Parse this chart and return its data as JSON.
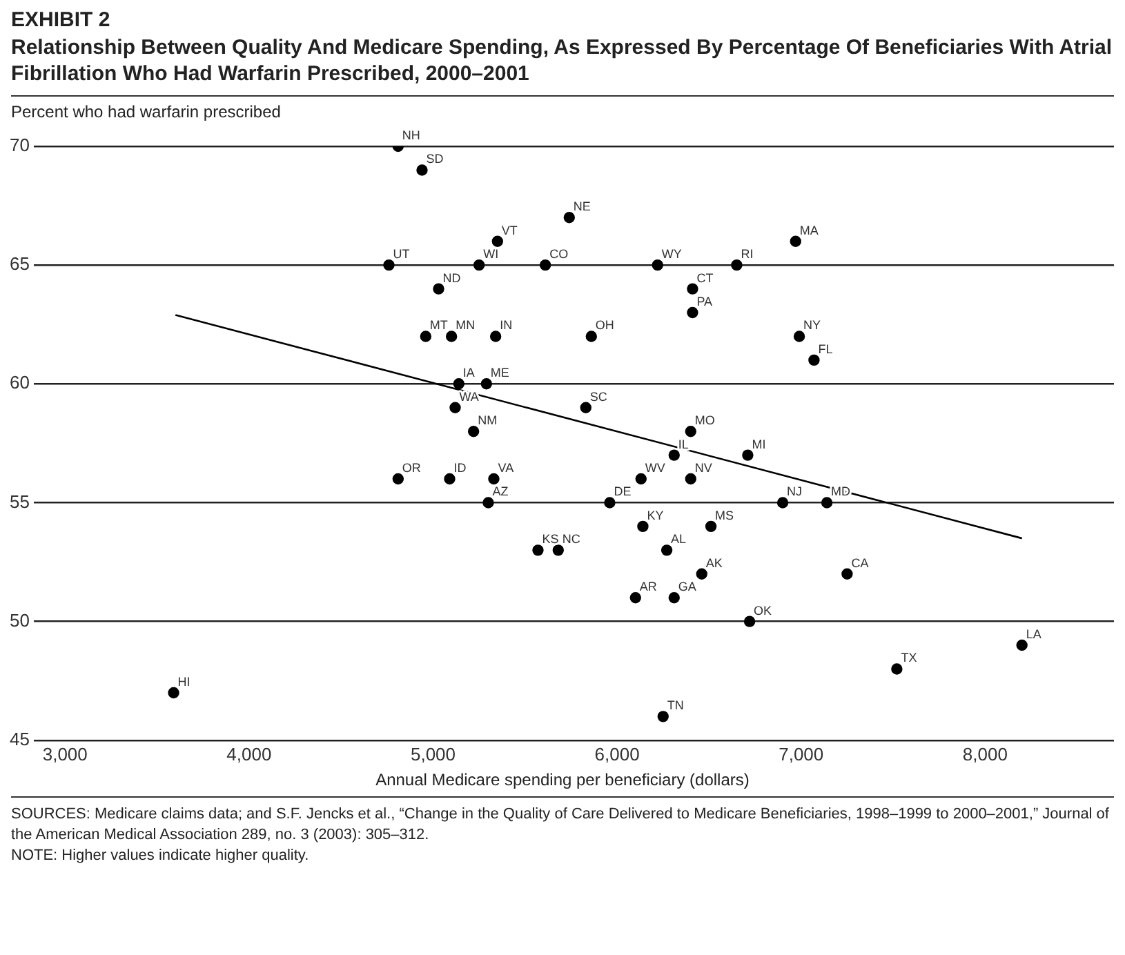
{
  "chart_data": {
    "type": "scatter",
    "title": "EXHIBIT 2",
    "subtitle": "Relationship Between Quality And Medicare Spending, As Expressed By Percentage Of Beneficiaries With Atrial Fibrillation Who Had Warfarin Prescribed, 2000–2001",
    "ylabel": "Percent who had warfarin prescribed",
    "xlabel": "Annual Medicare spending per beneficiary (dollars)",
    "xlim": [
      2830,
      8700
    ],
    "ylim": [
      45,
      70
    ],
    "xticks": [
      {
        "value": 3000,
        "label": "3,000"
      },
      {
        "value": 4000,
        "label": "4,000"
      },
      {
        "value": 5000,
        "label": "5,000"
      },
      {
        "value": 6000,
        "label": "6,000"
      },
      {
        "value": 7000,
        "label": "7,000"
      },
      {
        "value": 8000,
        "label": "8,000"
      }
    ],
    "yticks": [
      45,
      50,
      55,
      60,
      65,
      70
    ],
    "grid": "y",
    "marker": "circle",
    "legend": false,
    "series": [
      {
        "type": "scatter",
        "color": "#000000",
        "x": [
          4810,
          4940,
          4760,
          5350,
          5250,
          5030,
          5610,
          5740,
          6220,
          6650,
          6970,
          6410,
          6410,
          5860,
          6990,
          7070,
          4960,
          5100,
          5340,
          5140,
          5290,
          5120,
          5220,
          5830,
          6400,
          6310,
          6710,
          6130,
          6400,
          4810,
          5090,
          5330,
          5300,
          5960,
          6900,
          7140,
          6140,
          6510,
          5570,
          5680,
          6270,
          6460,
          7250,
          6100,
          6310,
          6720,
          8200,
          7520,
          6250,
          3590
        ],
        "values": [
          70,
          69,
          65,
          66,
          65,
          64,
          65,
          67,
          65,
          65,
          66,
          64,
          63,
          62,
          62,
          61,
          62,
          62,
          62,
          60,
          60,
          59,
          58,
          59,
          58,
          57,
          57,
          56,
          56,
          56,
          56,
          56,
          55,
          55,
          55,
          55,
          54,
          54,
          53,
          53,
          53,
          52,
          52,
          51,
          51,
          50,
          49,
          48,
          46,
          47
        ]
      },
      {
        "type": "line",
        "color": "#000000",
        "marker": "none",
        "x": [
          3600,
          8200
        ],
        "values": [
          62.9,
          53.5
        ]
      }
    ],
    "annotations": [
      {
        "text": "NH",
        "x": 4810,
        "y": 70
      },
      {
        "text": "SD",
        "x": 4940,
        "y": 69
      },
      {
        "text": "UT",
        "x": 4760,
        "y": 65
      },
      {
        "text": "VT",
        "x": 5350,
        "y": 66
      },
      {
        "text": "WI",
        "x": 5250,
        "y": 65
      },
      {
        "text": "ND",
        "x": 5030,
        "y": 64
      },
      {
        "text": "CO",
        "x": 5610,
        "y": 65
      },
      {
        "text": "NE",
        "x": 5740,
        "y": 67
      },
      {
        "text": "WY",
        "x": 6220,
        "y": 65
      },
      {
        "text": "RI",
        "x": 6650,
        "y": 65
      },
      {
        "text": "MA",
        "x": 6970,
        "y": 66
      },
      {
        "text": "CT",
        "x": 6410,
        "y": 64
      },
      {
        "text": "PA",
        "x": 6410,
        "y": 63
      },
      {
        "text": "OH",
        "x": 5860,
        "y": 62
      },
      {
        "text": "NY",
        "x": 6990,
        "y": 62
      },
      {
        "text": "FL",
        "x": 7070,
        "y": 61
      },
      {
        "text": "MT",
        "x": 4960,
        "y": 62
      },
      {
        "text": "MN",
        "x": 5100,
        "y": 62
      },
      {
        "text": "IN",
        "x": 5340,
        "y": 62
      },
      {
        "text": "IA",
        "x": 5140,
        "y": 60
      },
      {
        "text": "ME",
        "x": 5290,
        "y": 60
      },
      {
        "text": "WA",
        "x": 5120,
        "y": 59
      },
      {
        "text": "NM",
        "x": 5220,
        "y": 58
      },
      {
        "text": "SC",
        "x": 5830,
        "y": 59
      },
      {
        "text": "MO",
        "x": 6400,
        "y": 58
      },
      {
        "text": "IL",
        "x": 6310,
        "y": 57
      },
      {
        "text": "MI",
        "x": 6710,
        "y": 57
      },
      {
        "text": "WV",
        "x": 6130,
        "y": 56
      },
      {
        "text": "NV",
        "x": 6400,
        "y": 56
      },
      {
        "text": "OR",
        "x": 4810,
        "y": 56
      },
      {
        "text": "ID",
        "x": 5090,
        "y": 56
      },
      {
        "text": "VA",
        "x": 5330,
        "y": 56
      },
      {
        "text": "AZ",
        "x": 5300,
        "y": 55
      },
      {
        "text": "DE",
        "x": 5960,
        "y": 55
      },
      {
        "text": "NJ",
        "x": 6900,
        "y": 55
      },
      {
        "text": "MD",
        "x": 7140,
        "y": 55
      },
      {
        "text": "KY",
        "x": 6140,
        "y": 54
      },
      {
        "text": "MS",
        "x": 6510,
        "y": 54
      },
      {
        "text": "KS",
        "x": 5570,
        "y": 53
      },
      {
        "text": "NC",
        "x": 5680,
        "y": 53
      },
      {
        "text": "AL",
        "x": 6270,
        "y": 53
      },
      {
        "text": "AK",
        "x": 6460,
        "y": 52
      },
      {
        "text": "CA",
        "x": 7250,
        "y": 52
      },
      {
        "text": "AR",
        "x": 6100,
        "y": 51
      },
      {
        "text": "GA",
        "x": 6310,
        "y": 51
      },
      {
        "text": "OK",
        "x": 6720,
        "y": 50
      },
      {
        "text": "LA",
        "x": 8200,
        "y": 49
      },
      {
        "text": "TX",
        "x": 7520,
        "y": 48
      },
      {
        "text": "TN",
        "x": 6250,
        "y": 46
      },
      {
        "text": "HI",
        "x": 3590,
        "y": 47
      },
      "SOURCES: Medicare claims data; and S.F. Jencks et al., “Change in the Quality of Care Delivered to Medicare Beneficiaries, 1998–1999 to 2000–2001,” Journal of the American Medical Association 289, no. 3 (2003): 305–312.",
      "NOTE: Higher values indicate higher quality."
    ]
  }
}
